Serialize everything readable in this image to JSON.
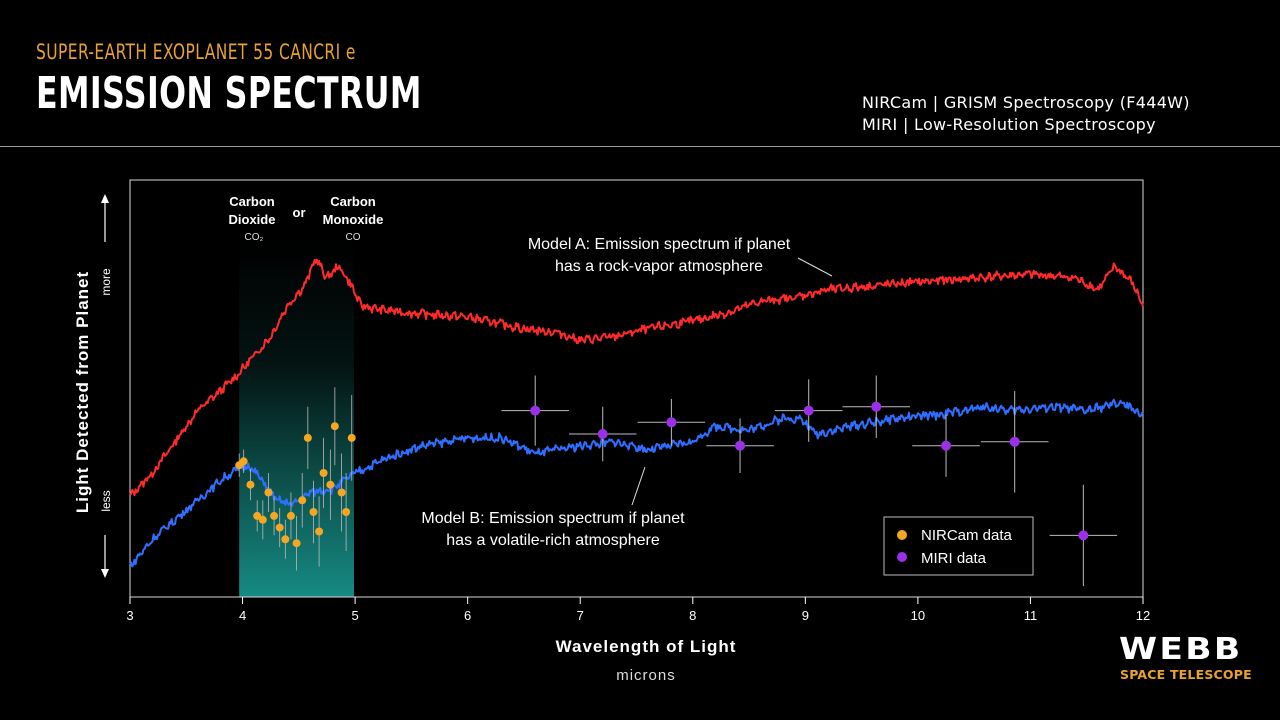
{
  "header": {
    "supertitle": "SUPER-EARTH EXOPLANET 55 CANCRI e",
    "title": "EMISSION SPECTRUM",
    "instrument_1": "NIRCam | GRISM Spectroscopy (F444W)",
    "instrument_2": "MIRI | Low-Resolution Spectroscopy"
  },
  "branding": {
    "logo": "WEBB",
    "subtitle": "SPACE TELESCOPE"
  },
  "colors": {
    "model_a": "#ff2b2b",
    "model_b": "#2f6fff",
    "nircam": "#f5a623",
    "miri": "#9b30e8",
    "band": "#1aa39a",
    "accent": "#e9a230"
  },
  "chart_data": {
    "type": "line",
    "xlabel": "Wavelength of Light",
    "xunit": "microns",
    "ylabel": "Light Detected from Planet",
    "y_more": "more",
    "y_less": "less",
    "xlim": [
      3,
      12
    ],
    "ylim": [
      0,
      1
    ],
    "xticks": [
      "3",
      "4",
      "5",
      "6",
      "7",
      "8",
      "9",
      "10",
      "11",
      "12"
    ],
    "band": {
      "x_range": [
        3.97,
        4.99
      ],
      "label_co2_line1": "Carbon",
      "label_co2_line2": "Dioxide",
      "label_co2_formula": "CO₂",
      "label_or": "or",
      "label_co_line1": "Carbon",
      "label_co_line2": "Monoxide",
      "label_co_formula": "CO"
    },
    "annotations": {
      "model_a_line1": "Model A: Emission spectrum if planet",
      "model_a_line2": "has a rock-vapor atmosphere",
      "model_b_line1": "Model B: Emission spectrum if planet",
      "model_b_line2": "has a volatile-rich atmosphere"
    },
    "legend": {
      "position": "bottom-right",
      "entries": [
        "NIRCam data",
        "MIRI data"
      ]
    },
    "series": [
      {
        "name": "Model A",
        "x": [
          3.0,
          3.2,
          3.4,
          3.6,
          3.8,
          3.95,
          4.1,
          4.25,
          4.4,
          4.55,
          4.65,
          4.75,
          4.85,
          4.95,
          5.05,
          5.2,
          5.5,
          6.0,
          6.5,
          6.8,
          7.0,
          7.3,
          7.6,
          8.0,
          8.3,
          8.6,
          8.9,
          9.2,
          9.6,
          10.0,
          10.5,
          11.0,
          11.4,
          11.6,
          11.75,
          11.9,
          12.0
        ],
        "y": [
          0.24,
          0.3,
          0.38,
          0.46,
          0.51,
          0.55,
          0.6,
          0.65,
          0.73,
          0.78,
          0.85,
          0.8,
          0.83,
          0.79,
          0.73,
          0.72,
          0.71,
          0.7,
          0.67,
          0.66,
          0.64,
          0.65,
          0.67,
          0.69,
          0.71,
          0.74,
          0.75,
          0.77,
          0.78,
          0.79,
          0.8,
          0.81,
          0.8,
          0.77,
          0.83,
          0.79,
          0.73
        ]
      },
      {
        "name": "Model B",
        "x": [
          3.0,
          3.2,
          3.4,
          3.6,
          3.8,
          3.95,
          4.05,
          4.15,
          4.3,
          4.45,
          4.6,
          4.8,
          5.0,
          5.3,
          5.6,
          6.0,
          6.3,
          6.6,
          6.8,
          7.0,
          7.3,
          7.6,
          8.0,
          8.2,
          8.5,
          8.8,
          8.95,
          9.1,
          9.4,
          9.8,
          10.2,
          10.6,
          10.8,
          11.2,
          11.5,
          11.8,
          12.0
        ],
        "y": [
          0.06,
          0.13,
          0.18,
          0.23,
          0.28,
          0.31,
          0.32,
          0.29,
          0.23,
          0.22,
          0.25,
          0.26,
          0.3,
          0.34,
          0.37,
          0.39,
          0.39,
          0.35,
          0.36,
          0.37,
          0.38,
          0.36,
          0.38,
          0.42,
          0.41,
          0.44,
          0.44,
          0.4,
          0.42,
          0.44,
          0.45,
          0.47,
          0.46,
          0.47,
          0.46,
          0.48,
          0.45
        ]
      }
    ],
    "nircam_data": [
      {
        "x": 3.97,
        "y": 0.32,
        "err": 0.03
      },
      {
        "x": 4.01,
        "y": 0.33,
        "err": 0.03
      },
      {
        "x": 4.07,
        "y": 0.27,
        "err": 0.04
      },
      {
        "x": 4.13,
        "y": 0.19,
        "err": 0.04
      },
      {
        "x": 4.18,
        "y": 0.18,
        "err": 0.05
      },
      {
        "x": 4.23,
        "y": 0.25,
        "err": 0.05
      },
      {
        "x": 4.28,
        "y": 0.19,
        "err": 0.05
      },
      {
        "x": 4.33,
        "y": 0.16,
        "err": 0.05
      },
      {
        "x": 4.38,
        "y": 0.13,
        "err": 0.05
      },
      {
        "x": 4.43,
        "y": 0.19,
        "err": 0.06
      },
      {
        "x": 4.48,
        "y": 0.12,
        "err": 0.07
      },
      {
        "x": 4.53,
        "y": 0.23,
        "err": 0.07
      },
      {
        "x": 4.58,
        "y": 0.39,
        "err": 0.08
      },
      {
        "x": 4.63,
        "y": 0.2,
        "err": 0.08
      },
      {
        "x": 4.68,
        "y": 0.15,
        "err": 0.09
      },
      {
        "x": 4.72,
        "y": 0.3,
        "err": 0.09
      },
      {
        "x": 4.78,
        "y": 0.27,
        "err": 0.09
      },
      {
        "x": 4.82,
        "y": 0.42,
        "err": 0.1
      },
      {
        "x": 4.88,
        "y": 0.25,
        "err": 0.1
      },
      {
        "x": 4.92,
        "y": 0.2,
        "err": 0.1
      },
      {
        "x": 4.97,
        "y": 0.39,
        "err": 0.11
      }
    ],
    "miri_data": [
      {
        "x": 6.6,
        "y": 0.46,
        "xerr": 0.3,
        "yerr": 0.09
      },
      {
        "x": 7.2,
        "y": 0.4,
        "xerr": 0.3,
        "yerr": 0.07
      },
      {
        "x": 7.81,
        "y": 0.43,
        "xerr": 0.3,
        "yerr": 0.06
      },
      {
        "x": 8.42,
        "y": 0.37,
        "xerr": 0.3,
        "yerr": 0.07
      },
      {
        "x": 9.03,
        "y": 0.46,
        "xerr": 0.3,
        "yerr": 0.08
      },
      {
        "x": 9.63,
        "y": 0.47,
        "xerr": 0.3,
        "yerr": 0.08
      },
      {
        "x": 10.25,
        "y": 0.37,
        "xerr": 0.3,
        "yerr": 0.08
      },
      {
        "x": 10.86,
        "y": 0.38,
        "xerr": 0.3,
        "yerr": 0.13
      },
      {
        "x": 11.47,
        "y": 0.14,
        "xerr": 0.3,
        "yerr": 0.13
      }
    ]
  }
}
